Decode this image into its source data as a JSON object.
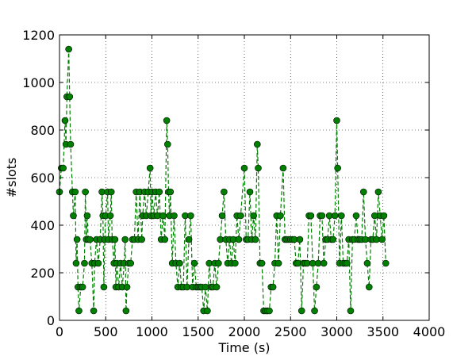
{
  "chart_data": {
    "type": "line",
    "xlabel": "Time (s)",
    "ylabel": "#slots",
    "x": [
      0,
      20,
      40,
      60,
      70,
      80,
      100,
      110,
      120,
      140,
      150,
      170,
      180,
      190,
      200,
      210,
      230,
      250,
      270,
      280,
      290,
      300,
      310,
      330,
      350,
      370,
      380,
      400,
      420,
      440,
      460,
      470,
      480,
      490,
      500,
      520,
      530,
      550,
      560,
      570,
      590,
      600,
      610,
      620,
      640,
      660,
      680,
      700,
      710,
      720,
      730,
      750,
      770,
      790,
      810,
      830,
      850,
      870,
      890,
      900,
      920,
      940,
      960,
      980,
      990,
      1000,
      1020,
      1040,
      1060,
      1080,
      1100,
      1120,
      1140,
      1160,
      1170,
      1180,
      1190,
      1200,
      1220,
      1240,
      1260,
      1280,
      1300,
      1320,
      1340,
      1360,
      1380,
      1400,
      1420,
      1440,
      1460,
      1480,
      1500,
      1520,
      1540,
      1560,
      1580,
      1600,
      1620,
      1640,
      1660,
      1680,
      1700,
      1720,
      1740,
      1760,
      1780,
      1800,
      1820,
      1840,
      1860,
      1880,
      1900,
      1920,
      1940,
      1960,
      2000,
      2020,
      2040,
      2060,
      2080,
      2100,
      2120,
      2140,
      2150,
      2170,
      2190,
      2210,
      2230,
      2250,
      2270,
      2290,
      2310,
      2330,
      2350,
      2370,
      2390,
      2420,
      2440,
      2460,
      2480,
      2500,
      2520,
      2540,
      2560,
      2580,
      2600,
      2620,
      2640,
      2660,
      2680,
      2700,
      2720,
      2740,
      2760,
      2780,
      2800,
      2820,
      2840,
      2860,
      2880,
      2900,
      2920,
      2940,
      2960,
      2980,
      3000,
      3010,
      3030,
      3050,
      3070,
      3090,
      3110,
      3130,
      3150,
      3170,
      3190,
      3210,
      3230,
      3250,
      3270,
      3290,
      3310,
      3330,
      3350,
      3370,
      3390,
      3410,
      3430,
      3450,
      3470,
      3490,
      3510,
      3530
    ],
    "series": [
      {
        "color": "#008000",
        "values": [
          540,
          640,
          640,
          840,
          740,
          940,
          1140,
          940,
          740,
          540,
          440,
          540,
          240,
          340,
          140,
          40,
          140,
          140,
          240,
          540,
          340,
          440,
          340,
          340,
          240,
          40,
          240,
          340,
          240,
          340,
          540,
          440,
          140,
          340,
          440,
          540,
          340,
          440,
          540,
          340,
          240,
          340,
          140,
          240,
          140,
          240,
          140,
          240,
          340,
          40,
          140,
          240,
          240,
          340,
          340,
          540,
          340,
          540,
          340,
          440,
          540,
          440,
          540,
          640,
          440,
          540,
          440,
          540,
          440,
          540,
          340,
          440,
          340,
          840,
          740,
          540,
          440,
          540,
          240,
          440,
          240,
          140,
          240,
          140,
          140,
          440,
          140,
          340,
          440,
          140,
          240,
          140,
          140,
          140,
          140,
          40,
          140,
          40,
          240,
          140,
          140,
          240,
          140,
          240,
          340,
          440,
          540,
          340,
          240,
          340,
          240,
          340,
          240,
          440,
          340,
          440,
          640,
          340,
          340,
          540,
          340,
          440,
          340,
          740,
          640,
          240,
          240,
          40,
          40,
          40,
          40,
          140,
          140,
          240,
          440,
          240,
          440,
          640,
          340,
          340,
          340,
          340,
          340,
          340,
          240,
          240,
          340,
          40,
          240,
          240,
          240,
          440,
          440,
          240,
          40,
          140,
          240,
          440,
          440,
          240,
          340,
          340,
          440,
          340,
          340,
          440,
          840,
          640,
          240,
          440,
          240,
          240,
          240,
          340,
          40,
          340,
          340,
          440,
          340,
          340,
          340,
          540,
          340,
          240,
          140,
          340,
          340,
          440,
          340,
          540,
          440,
          340,
          440,
          240
        ]
      }
    ],
    "xlim": [
      0,
      4000
    ],
    "xticks": [
      0,
      500,
      1000,
      1500,
      2000,
      2500,
      3000,
      3500,
      4000
    ],
    "ylim": [
      0,
      1200
    ],
    "yticks": [
      0,
      200,
      400,
      600,
      800,
      1000,
      1200
    ],
    "grid": true
  }
}
